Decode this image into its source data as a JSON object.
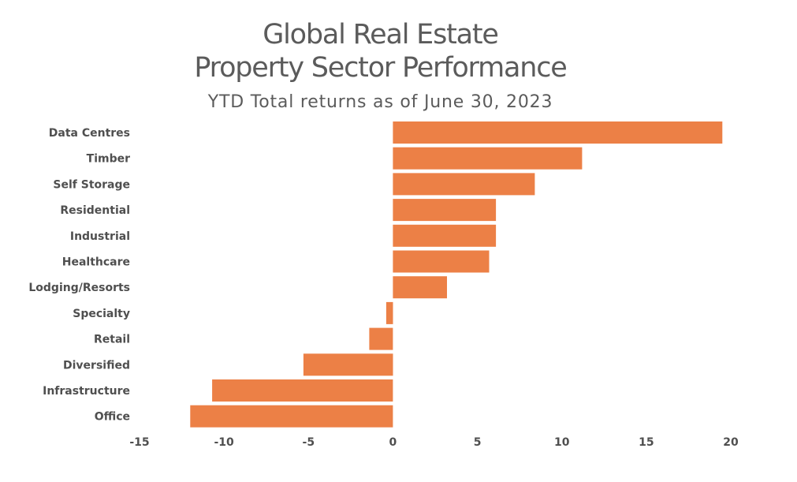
{
  "chart_data": {
    "type": "bar",
    "orientation": "horizontal",
    "title_lines": [
      "Global Real Estate",
      "Property Sector Performance"
    ],
    "subtitle": "YTD Total returns as of June 30, 2023",
    "xlabel": "",
    "ylabel": "",
    "categories": [
      "Data Centres",
      "Timber",
      "Self Storage",
      "Residential",
      "Industrial",
      "Healthcare",
      "Lodging/Resorts",
      "Specialty",
      "Retail",
      "Diversified",
      "Infrastructure",
      "Office"
    ],
    "values": [
      19.5,
      11.2,
      8.4,
      6.1,
      6.1,
      5.7,
      3.2,
      -0.4,
      -1.4,
      -5.3,
      -10.7,
      -12.0
    ],
    "xlim": [
      -15,
      20
    ],
    "xticks": [
      "-15",
      "-10",
      "-5",
      "0",
      "5",
      "10",
      "15",
      "20"
    ],
    "bar_color": "#ec8046",
    "grid": false,
    "legend": "none"
  }
}
